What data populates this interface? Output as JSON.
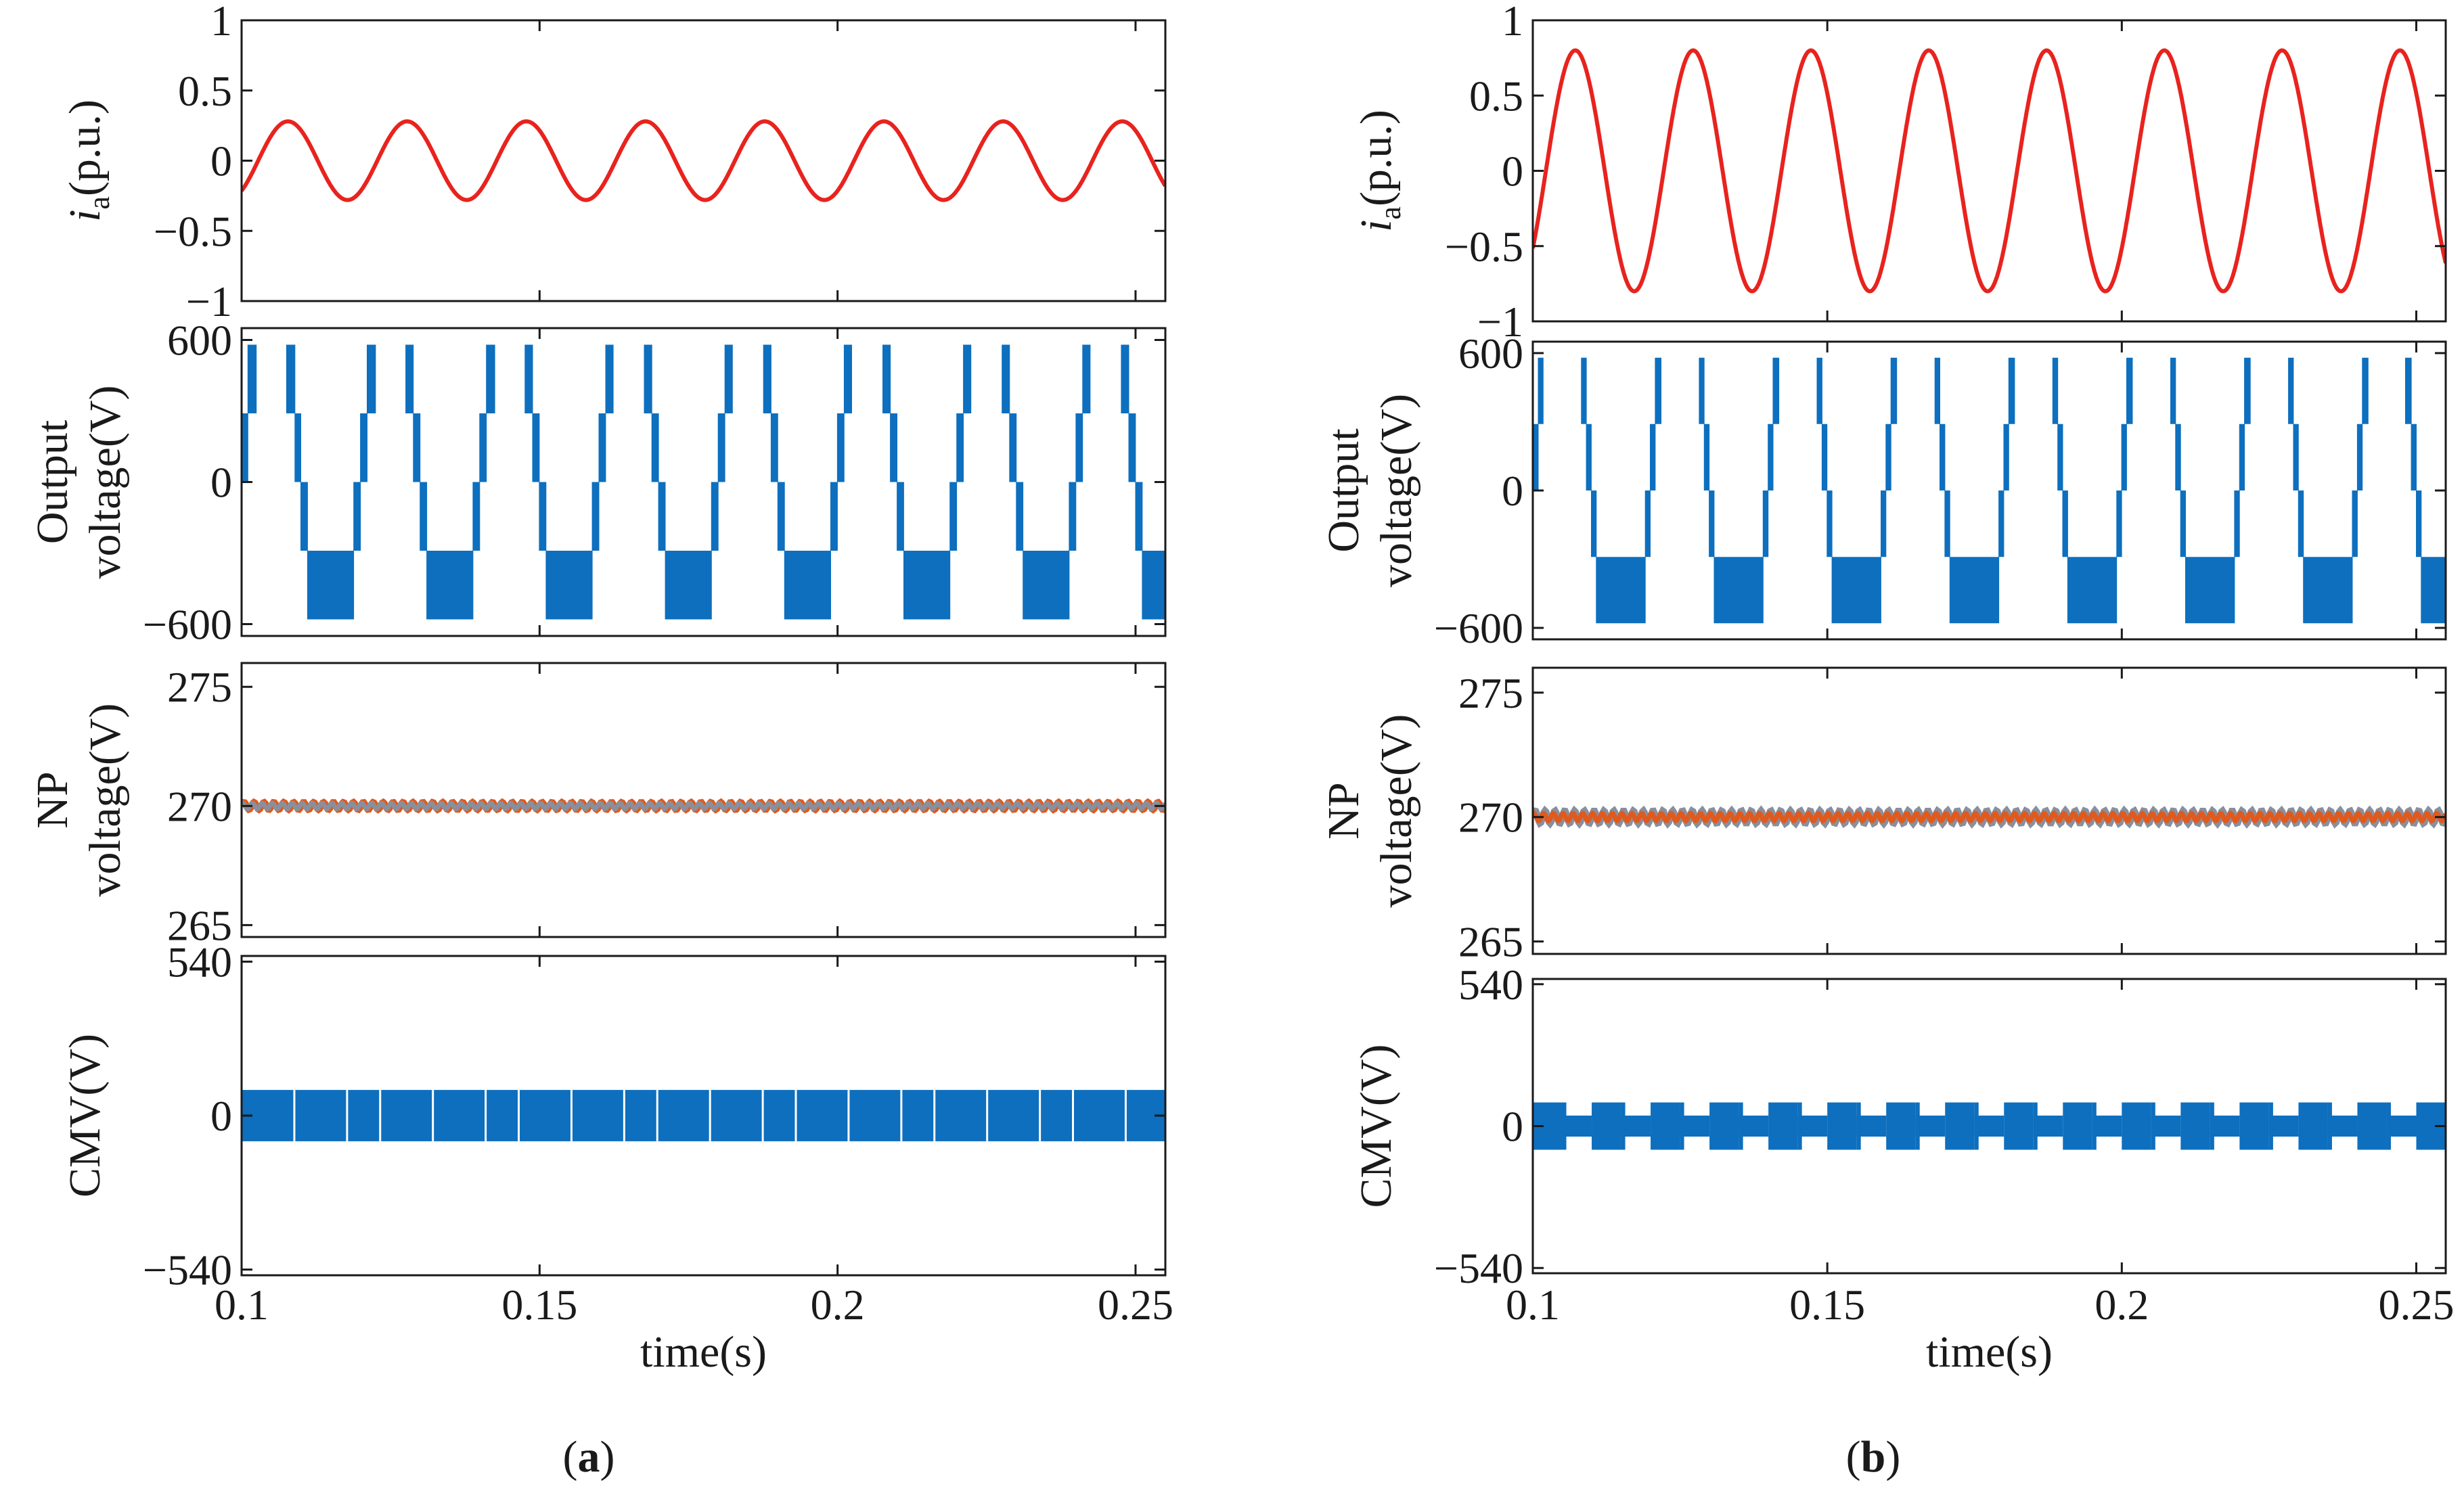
{
  "figure": {
    "captions": [
      {
        "open": "(",
        "letter": "a",
        "close": ")"
      },
      {
        "open": "(",
        "letter": "b",
        "close": ")"
      }
    ]
  },
  "colors": {
    "current": "#e8231e",
    "voltage": "#0d6fbe",
    "np_upper": "#e05a1e",
    "np_lower": "#8a8f9c",
    "axis": "#1a1a1a"
  },
  "chart_data": [
    {
      "panel": "a",
      "type": "line",
      "xlabel": "time(s)",
      "xlim": [
        0.1,
        0.255
      ],
      "xticks": [
        0.1,
        0.15,
        0.2,
        0.25
      ],
      "xtick_labels": [
        "0.1",
        "0.15",
        "0.2",
        "0.25"
      ],
      "subplots": [
        {
          "id": "ia",
          "ylabel_italic": "i",
          "ylabel_sub": "a",
          "ylabel_rest": "(p.u.)",
          "ylim": [
            -1,
            1
          ],
          "yticks": [
            1,
            0.5,
            0,
            -0.5,
            -1
          ],
          "ytick_labels": [
            "1",
            "0.5",
            "0",
            "−0.5",
            "−1"
          ],
          "series": [
            {
              "kind": "sine",
              "amplitude": 0.28,
              "frequency_hz": 50,
              "phase_deg": -50,
              "color": "current"
            }
          ]
        },
        {
          "id": "output-voltage",
          "ylabel_lines": [
            "Output",
            "voltage(V)"
          ],
          "ylim": [
            -650,
            650
          ],
          "yticks": [
            600,
            0,
            -600
          ],
          "ytick_labels": [
            "600",
            "0",
            "−600"
          ],
          "series": [
            {
              "kind": "five-level-pwm",
              "levels": [
                -580,
                -290,
                0,
                290,
                580
              ],
              "modulation_index": 1.45,
              "frequency_hz": 50,
              "phase_deg": 0,
              "color": "voltage"
            }
          ]
        },
        {
          "id": "np-voltage",
          "ylabel_lines": [
            "NP",
            "voltage(V)"
          ],
          "ylim": [
            264.5,
            276
          ],
          "yticks": [
            275,
            270,
            265
          ],
          "ytick_labels": [
            "275",
            "270",
            "265"
          ],
          "series": [
            {
              "kind": "ripple",
              "mean": 270,
              "ripple": 0.15,
              "color": "np_upper"
            },
            {
              "kind": "ripple",
              "mean": 270,
              "ripple": 0.12,
              "color": "np_lower"
            }
          ]
        },
        {
          "id": "cmv",
          "ylabel": "CMV(V)",
          "ylim": [
            -560,
            560
          ],
          "yticks": [
            540,
            0,
            -540
          ],
          "ytick_labels": [
            "540",
            "0",
            "−540"
          ],
          "series": [
            {
              "kind": "band",
              "low": -90,
              "high": 90,
              "color": "voltage"
            }
          ]
        }
      ]
    },
    {
      "panel": "b",
      "type": "line",
      "xlabel": "time(s)",
      "xlim": [
        0.1,
        0.255
      ],
      "xticks": [
        0.1,
        0.15,
        0.2,
        0.25
      ],
      "xtick_labels": [
        "0.1",
        "0.15",
        "0.2",
        "0.25"
      ],
      "subplots": [
        {
          "id": "ia",
          "ylabel_italic": "i",
          "ylabel_sub": "a",
          "ylabel_rest": "(p.u.)",
          "ylim": [
            -1,
            1
          ],
          "yticks": [
            1,
            0.5,
            0,
            -0.5,
            -1
          ],
          "ytick_labels": [
            "1",
            "0.5",
            "0",
            "−0.5",
            "−1"
          ],
          "series": [
            {
              "kind": "sine",
              "amplitude": 0.8,
              "frequency_hz": 50,
              "phase_deg": -40,
              "color": "current"
            }
          ]
        },
        {
          "id": "output-voltage",
          "ylabel_lines": [
            "Output",
            "voltage(V)"
          ],
          "ylim": [
            -650,
            650
          ],
          "yticks": [
            600,
            0,
            -600
          ],
          "ytick_labels": [
            "600",
            "0",
            "−600"
          ],
          "series": [
            {
              "kind": "five-level-pwm",
              "levels": [
                -580,
                -290,
                0,
                290,
                580
              ],
              "modulation_index": 1.9,
              "frequency_hz": 50,
              "phase_deg": 0,
              "color": "voltage"
            }
          ]
        },
        {
          "id": "np-voltage",
          "ylabel_lines": [
            "NP",
            "voltage(V)"
          ],
          "ylim": [
            264.5,
            276
          ],
          "yticks": [
            275,
            270,
            265
          ],
          "ytick_labels": [
            "275",
            "270",
            "265"
          ],
          "series": [
            {
              "kind": "ripple",
              "mean": 270,
              "ripple": 0.25,
              "color": "np_lower"
            },
            {
              "kind": "ripple",
              "mean": 270,
              "ripple": 0.15,
              "color": "np_upper"
            }
          ]
        },
        {
          "id": "cmv",
          "ylabel": "CMV(V)",
          "ylim": [
            -560,
            560
          ],
          "yticks": [
            540,
            0,
            -540
          ],
          "ytick_labels": [
            "540",
            "0",
            "−540"
          ],
          "series": [
            {
              "kind": "square-band",
              "low": -90,
              "high": 90,
              "mid_low": -40,
              "mid_high": 40,
              "frequency_hz": 100,
              "color": "voltage"
            }
          ]
        }
      ]
    }
  ]
}
